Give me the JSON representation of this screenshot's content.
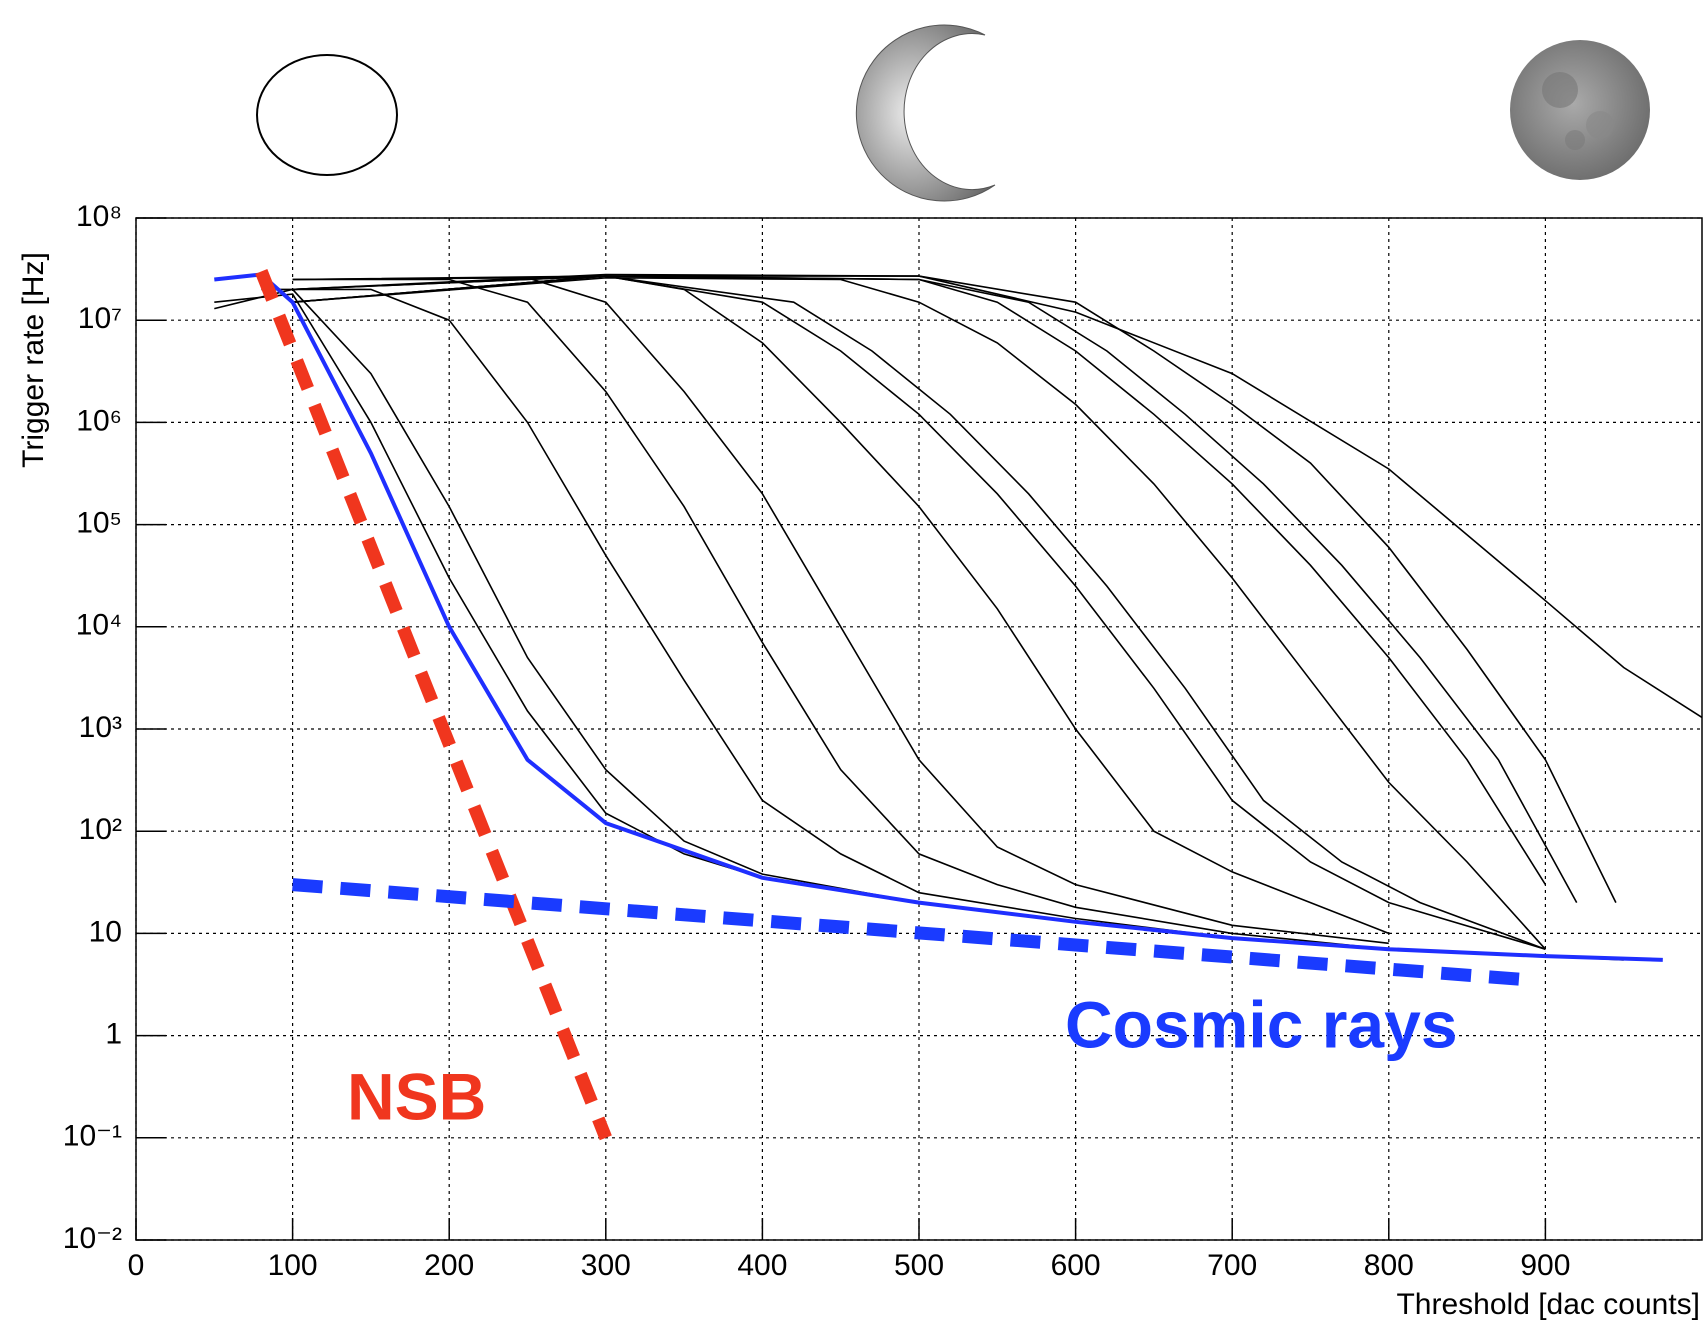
{
  "chart_data": {
    "type": "line",
    "x_label": "Threshold [dac counts]",
    "y_label": "Trigger rate [Hz]",
    "xlim": [
      0,
      1000
    ],
    "ylim": [
      0.01,
      100000000
    ],
    "log_y": true,
    "grid": true,
    "xticks": [
      0,
      100,
      200,
      300,
      400,
      500,
      600,
      700,
      800,
      900
    ],
    "yticks": [
      {
        "value": 0.01,
        "label": "10⁻²"
      },
      {
        "value": 0.1,
        "label": "10⁻¹"
      },
      1,
      10,
      {
        "value": 100,
        "label": "10²"
      },
      {
        "value": 1000,
        "label": "10³"
      },
      {
        "value": 10000,
        "label": "10⁴"
      },
      {
        "value": 100000,
        "label": "10⁵"
      },
      {
        "value": 1000000,
        "label": "10⁶"
      },
      {
        "value": 10000000,
        "label": "10⁷"
      },
      {
        "value": 100000000,
        "label": "10⁸"
      }
    ],
    "series": [
      {
        "color": "#000000",
        "x": [
          50,
          100,
          150,
          200,
          250,
          300,
          350,
          400,
          500,
          600,
          700,
          800,
          900,
          950
        ],
        "values": [
          15000000,
          18000000,
          1000000,
          30000,
          1500,
          150,
          60,
          35,
          20,
          13,
          9,
          7,
          6,
          5.5
        ]
      },
      {
        "color": "#000000",
        "x": [
          50,
          100,
          150,
          200,
          250,
          300,
          350,
          400,
          500,
          600,
          700,
          800,
          900
        ],
        "values": [
          13000000,
          20000000,
          3000000,
          150000,
          5000,
          400,
          80,
          38,
          20,
          13,
          9,
          7,
          6
        ]
      },
      {
        "color": "#000000",
        "x": [
          80,
          150,
          200,
          250,
          300,
          350,
          400,
          450,
          500,
          600,
          700,
          800
        ],
        "values": [
          20000000,
          20000000,
          10000000,
          1000000,
          50000,
          3000,
          200,
          60,
          25,
          14,
          9,
          7
        ]
      },
      {
        "color": "#000000",
        "x": [
          100,
          200,
          250,
          300,
          350,
          400,
          450,
          500,
          550,
          600,
          700,
          800
        ],
        "values": [
          25000000,
          25000000,
          15000000,
          2000000,
          150000,
          7000,
          400,
          60,
          30,
          18,
          10,
          7
        ]
      },
      {
        "color": "#000000",
        "x": [
          100,
          250,
          300,
          350,
          400,
          450,
          500,
          550,
          600,
          700,
          800
        ],
        "values": [
          25000000,
          26000000,
          15000000,
          2000000,
          200000,
          10000,
          500,
          70,
          30,
          12,
          8
        ]
      },
      {
        "color": "#000000",
        "x": [
          100,
          300,
          350,
          400,
          450,
          500,
          550,
          600,
          650,
          700,
          800
        ],
        "values": [
          25000000,
          27000000,
          20000000,
          6000000,
          1000000,
          150000,
          15000,
          1000,
          100,
          40,
          10
        ]
      },
      {
        "color": "#000000",
        "x": [
          100,
          300,
          400,
          450,
          500,
          550,
          600,
          650,
          700,
          750,
          800,
          900
        ],
        "values": [
          20000000,
          27000000,
          15000000,
          5000000,
          1200000,
          200000,
          25000,
          2500,
          200,
          50,
          20,
          7
        ]
      },
      {
        "color": "#000000",
        "x": [
          100,
          300,
          420,
          470,
          520,
          570,
          620,
          670,
          720,
          770,
          820,
          900
        ],
        "values": [
          20000000,
          27000000,
          15000000,
          5000000,
          1200000,
          200000,
          25000,
          2500,
          200,
          50,
          20,
          7
        ]
      },
      {
        "color": "#000000",
        "x": [
          100,
          300,
          450,
          500,
          550,
          600,
          650,
          700,
          750,
          800,
          850,
          900
        ],
        "values": [
          15000000,
          26000000,
          25000000,
          15000000,
          6000000,
          1500000,
          250000,
          30000,
          3000,
          300,
          50,
          7
        ]
      },
      {
        "color": "#000000",
        "x": [
          100,
          300,
          500,
          550,
          600,
          650,
          700,
          750,
          800,
          850,
          900
        ],
        "values": [
          15000000,
          27000000,
          25000000,
          15000000,
          5000000,
          1200000,
          250000,
          40000,
          5000,
          500,
          30
        ]
      },
      {
        "color": "#000000",
        "x": [
          100,
          300,
          500,
          570,
          620,
          670,
          720,
          770,
          820,
          870,
          920
        ],
        "values": [
          15000000,
          27000000,
          25000000,
          15000000,
          5000000,
          1200000,
          250000,
          40000,
          5000,
          500,
          20
        ]
      },
      {
        "color": "#000000",
        "x": [
          100,
          300,
          500,
          600,
          650,
          700,
          750,
          800,
          850,
          900,
          945
        ],
        "values": [
          15000000,
          27000000,
          27000000,
          15000000,
          5000000,
          1500000,
          400000,
          60000,
          6000,
          500,
          20
        ]
      },
      {
        "color": "#000000",
        "x": [
          100,
          300,
          500,
          600,
          700,
          800,
          900,
          950,
          1000
        ],
        "values": [
          20000000,
          28000000,
          27000000,
          12000000,
          3000000,
          350000,
          18000,
          4000,
          1300
        ]
      },
      {
        "color": "#1f2fff",
        "x": [
          50,
          80,
          100,
          150,
          200,
          250,
          300,
          400,
          500,
          600,
          700,
          800,
          900,
          975
        ],
        "values": [
          25000000,
          28000000,
          15000000,
          500000,
          10000,
          500,
          120,
          35,
          20,
          13,
          9,
          7,
          6,
          5.5
        ]
      }
    ],
    "annotations": [
      {
        "text": "NSB",
        "color": "#f0361e",
        "x": [
          80,
          300
        ],
        "y": [
          30000000,
          0.1
        ]
      },
      {
        "text": "Cosmic rays",
        "color": "#1a3bff",
        "x": [
          100,
          890
        ],
        "y": [
          30,
          3.5
        ]
      }
    ]
  }
}
